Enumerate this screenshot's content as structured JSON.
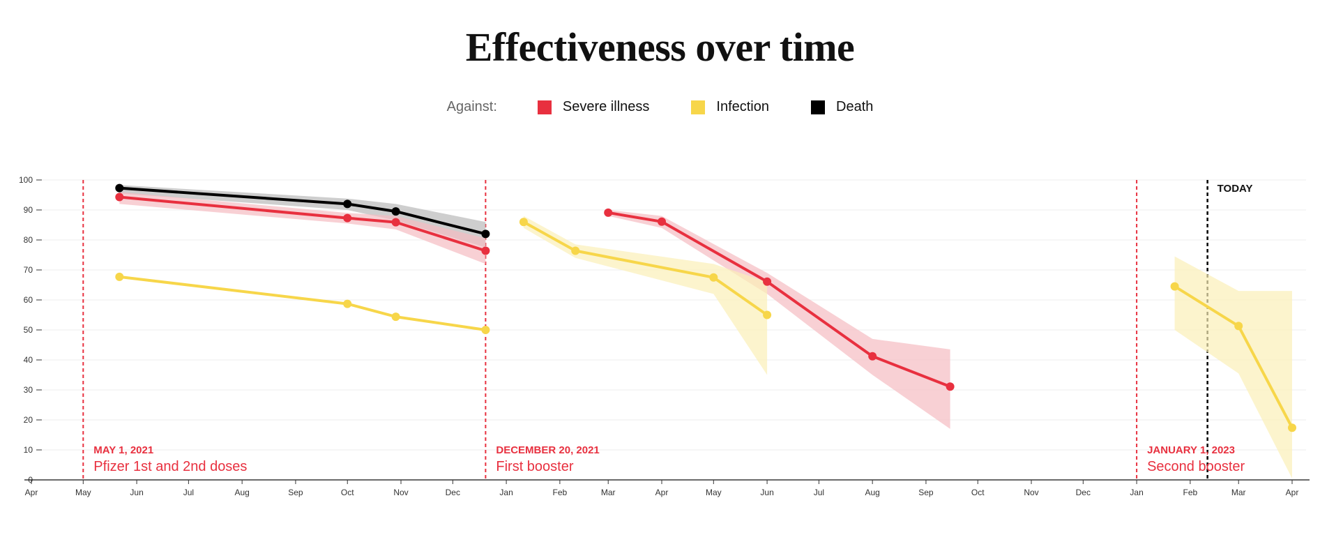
{
  "chart_data": {
    "type": "line",
    "title": "Effectiveness over time",
    "legend": {
      "prefix": "Against:",
      "placement": "top-center",
      "items": [
        {
          "name": "Severe illness",
          "color": "#e8303f"
        },
        {
          "name": "Infection",
          "color": "#f7d64a"
        },
        {
          "name": "Death",
          "color": "#000000"
        }
      ]
    },
    "y_axis": {
      "ylim": [
        0,
        100
      ],
      "ticks": [
        "0",
        "10",
        "20",
        "30",
        "40",
        "50",
        "60",
        "70",
        "80",
        "90",
        "100"
      ]
    },
    "x_axis": {
      "range": [
        "2021-04-01",
        "2023-04-01"
      ],
      "ticks": [
        {
          "label": "Apr",
          "date": "2021-04-01"
        },
        {
          "label": "May",
          "date": "2021-05-01"
        },
        {
          "label": "Jun",
          "date": "2021-06-01"
        },
        {
          "label": "Jul",
          "date": "2021-07-01"
        },
        {
          "label": "Aug",
          "date": "2021-08-01"
        },
        {
          "label": "Sep",
          "date": "2021-09-01"
        },
        {
          "label": "Oct",
          "date": "2021-10-01"
        },
        {
          "label": "Nov",
          "date": "2021-11-01"
        },
        {
          "label": "Dec",
          "date": "2021-12-01"
        },
        {
          "label": "Jan",
          "date": "2022-01-01"
        },
        {
          "label": "Feb",
          "date": "2022-02-01"
        },
        {
          "label": "Mar",
          "date": "2022-03-01"
        },
        {
          "label": "Apr",
          "date": "2022-04-01"
        },
        {
          "label": "May",
          "date": "2022-05-01"
        },
        {
          "label": "Jun",
          "date": "2022-06-01"
        },
        {
          "label": "Jul",
          "date": "2022-07-01"
        },
        {
          "label": "Aug",
          "date": "2022-08-01"
        },
        {
          "label": "Sep",
          "date": "2022-09-01"
        },
        {
          "label": "Oct",
          "date": "2022-10-01"
        },
        {
          "label": "Nov",
          "date": "2022-11-01"
        },
        {
          "label": "Dec",
          "date": "2022-12-01"
        },
        {
          "label": "Jan",
          "date": "2023-01-01"
        },
        {
          "label": "Feb",
          "date": "2023-02-01"
        },
        {
          "label": "Mar",
          "date": "2023-03-01"
        },
        {
          "label": "Apr",
          "date": "2023-04-01"
        }
      ]
    },
    "grid": true,
    "annotations": [
      {
        "date": "2021-05-01",
        "date_label": "MAY 1, 2021",
        "label": "Pfizer 1st and 2nd doses",
        "color": "#e8303f",
        "style": "dashed"
      },
      {
        "date": "2021-12-20",
        "date_label": "DECEMBER 20, 2021",
        "label": "First booster",
        "color": "#e8303f",
        "style": "dashed"
      },
      {
        "date": "2023-01-01",
        "date_label": "JANUARY 1, 2023",
        "label": "Second booster",
        "color": "#e8303f",
        "style": "dashed"
      }
    ],
    "today": {
      "date": "2023-02-11",
      "label": "TODAY",
      "color": "#000000"
    },
    "series": [
      {
        "name": "Death",
        "color": "#000000",
        "band_color": "#bdbdbd",
        "band_opacity": 0.75,
        "segments": [
          {
            "points": [
              {
                "x": "2021-05-22",
                "y": 97.3,
                "lo": 95.5,
                "hi": 98.3
              },
              {
                "x": "2021-10-01",
                "y": 92.0,
                "lo": 90.0,
                "hi": 93.8
              },
              {
                "x": "2021-10-29",
                "y": 89.5,
                "lo": 86.5,
                "hi": 92.0
              },
              {
                "x": "2021-12-20",
                "y": 82.0,
                "lo": 77.5,
                "hi": 86.0
              }
            ]
          }
        ]
      },
      {
        "name": "Severe illness",
        "color": "#e8303f",
        "band_color": "#f5bcc2",
        "band_opacity": 0.7,
        "segments": [
          {
            "points": [
              {
                "x": "2021-05-22",
                "y": 94.3,
                "lo": 92.0,
                "hi": 96.0
              },
              {
                "x": "2021-10-01",
                "y": 87.3,
                "lo": 85.5,
                "hi": 89.0
              },
              {
                "x": "2021-10-29",
                "y": 85.9,
                "lo": 83.5,
                "hi": 88.0
              },
              {
                "x": "2021-12-20",
                "y": 76.4,
                "lo": 72.0,
                "hi": 80.5
              }
            ]
          },
          {
            "points": [
              {
                "x": "2022-03-01",
                "y": 89.1,
                "lo": 88.0,
                "hi": 90.0
              },
              {
                "x": "2022-04-01",
                "y": 86.1,
                "lo": 84.0,
                "hi": 88.0
              },
              {
                "x": "2022-06-01",
                "y": 66.1,
                "lo": 62.0,
                "hi": 69.0
              },
              {
                "x": "2022-08-01",
                "y": 41.2,
                "lo": 35.0,
                "hi": 47.0
              },
              {
                "x": "2022-09-15",
                "y": 31.1,
                "lo": 17.0,
                "hi": 43.5
              }
            ]
          }
        ]
      },
      {
        "name": "Infection",
        "color": "#f7d64a",
        "band_color": "#fbf0b8",
        "band_opacity": 0.7,
        "segments": [
          {
            "points": [
              {
                "x": "2021-05-22",
                "y": 67.7
              },
              {
                "x": "2021-10-01",
                "y": 58.7
              },
              {
                "x": "2021-10-29",
                "y": 54.4
              },
              {
                "x": "2021-12-20",
                "y": 50.0
              }
            ]
          },
          {
            "points": [
              {
                "x": "2022-01-11",
                "y": 86.0,
                "lo": 84.0,
                "hi": 88.0
              },
              {
                "x": "2022-02-10",
                "y": 76.4,
                "lo": 74.0,
                "hi": 78.5
              },
              {
                "x": "2022-05-01",
                "y": 67.5,
                "lo": 62.0,
                "hi": 72.0
              },
              {
                "x": "2022-06-01",
                "y": 55.0,
                "lo": 35.0,
                "hi": 66.0
              }
            ]
          },
          {
            "points": [
              {
                "x": "2023-01-23",
                "y": 64.5,
                "lo": 50.0,
                "hi": 74.5
              },
              {
                "x": "2023-03-01",
                "y": 51.3,
                "lo": 35.5,
                "hi": 63.0
              },
              {
                "x": "2023-04-01",
                "y": 17.4,
                "lo": 0.5,
                "hi": 63.0
              }
            ]
          }
        ]
      }
    ]
  }
}
